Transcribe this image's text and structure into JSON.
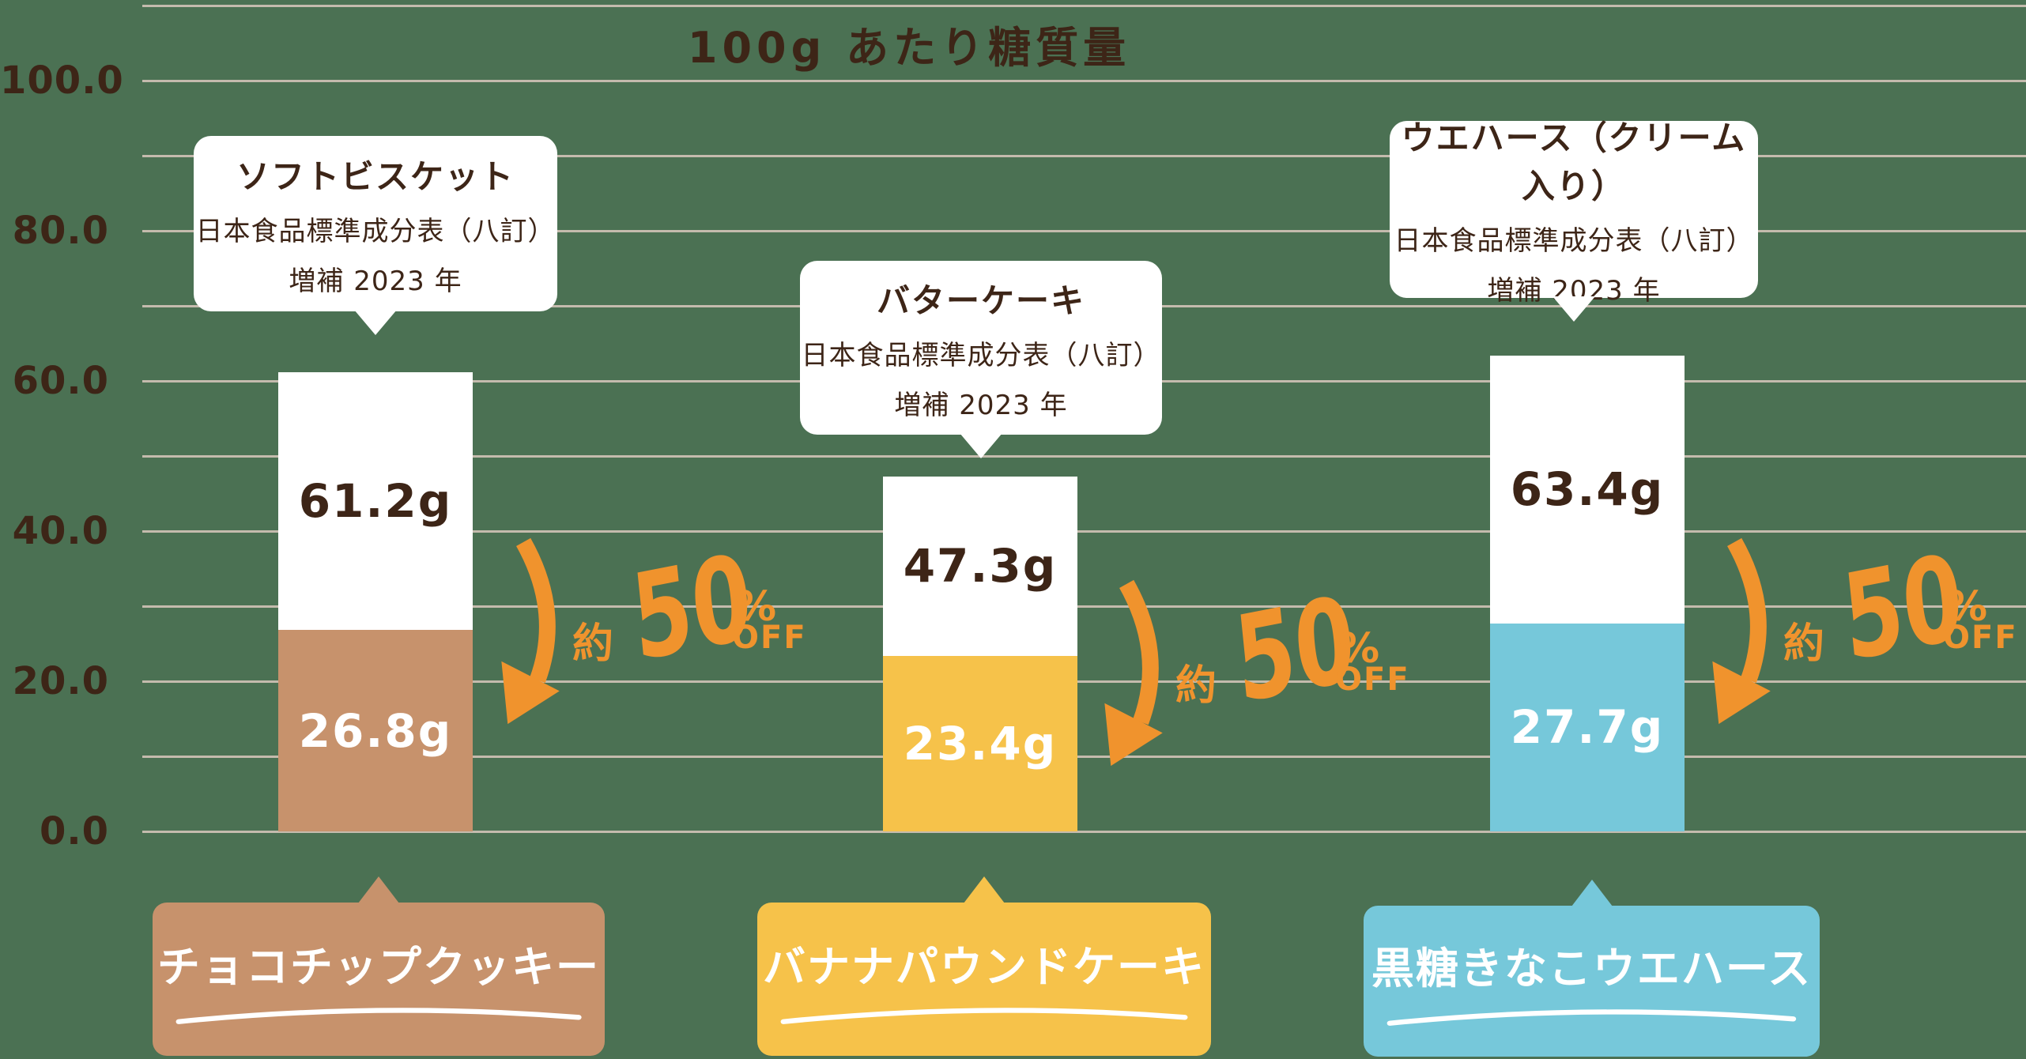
{
  "chart_data": {
    "type": "bar",
    "title": "100g あたり糖質量",
    "value_unit": "g",
    "y_axis": {
      "ticks": [
        "0.0",
        "20.0",
        "40.0",
        "60.0",
        "80.0",
        "100.0"
      ],
      "tick_values": [
        0,
        20,
        40,
        60,
        80,
        100
      ],
      "ylim": [
        0,
        110
      ],
      "grid_step": 10,
      "grid_on": true
    },
    "groups": [
      {
        "product_name": "チョコチップクッキー",
        "reference_name": "ソフトビスケット",
        "source_line1": "日本食品標準成分表（八訂）",
        "source_line2": "増補 2023 年",
        "reference_value": 61.2,
        "reference_label": "61.2g",
        "product_value": 26.8,
        "product_label": "26.8g",
        "color": "#C7926C",
        "discount": {
          "approx": "約",
          "number": "50",
          "percent": "%",
          "off": "OFF"
        }
      },
      {
        "product_name": "バナナパウンドケーキ",
        "reference_name": "バターケーキ",
        "source_line1": "日本食品標準成分表（八訂）",
        "source_line2": "増補 2023 年",
        "reference_value": 47.3,
        "reference_label": "47.3g",
        "product_value": 23.4,
        "product_label": "23.4g",
        "color": "#F6C24A",
        "discount": {
          "approx": "約",
          "number": "50",
          "percent": "%",
          "off": "OFF"
        }
      },
      {
        "product_name": "黒糖きなこウエハース",
        "reference_name": "ウエハース（クリーム入り）",
        "source_line1": "日本食品標準成分表（八訂）",
        "source_line2": "増補 2023 年",
        "reference_value": 63.4,
        "reference_label": "63.4g",
        "product_value": 27.7,
        "product_label": "27.7g",
        "color": "#76C8DA",
        "discount": {
          "approx": "約",
          "number": "50",
          "percent": "%",
          "off": "OFF"
        }
      }
    ],
    "colors": {
      "background": "#4B7153",
      "gridline": "#C4BBAD",
      "text": "#3D2517",
      "accent_orange": "#F0932D",
      "reference_bar": "#FFFFFF"
    }
  }
}
